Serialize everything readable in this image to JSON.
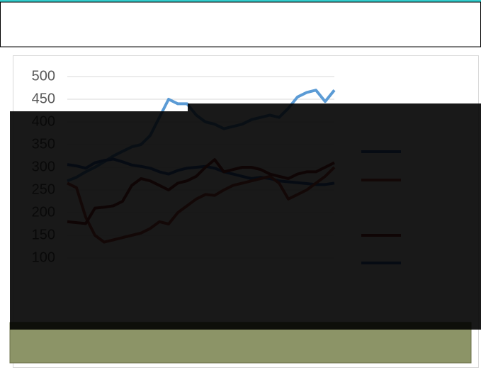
{
  "chart_data": {
    "type": "line",
    "categories": [
      null,
      null,
      null,
      null,
      null,
      null,
      null,
      null,
      null,
      null,
      null,
      null,
      null,
      null,
      null,
      null,
      null,
      null,
      null,
      null,
      null,
      null,
      null,
      null,
      null,
      null,
      null,
      null,
      null,
      null
    ],
    "ylim": [
      100,
      500
    ],
    "yticks": [
      100,
      150,
      200,
      250,
      300,
      350,
      400,
      450,
      500
    ],
    "grid": true,
    "series": [
      {
        "color": "#5b9bd5",
        "values": [
          270,
          278,
          290,
          300,
          312,
          325,
          335,
          345,
          350,
          370,
          410,
          450,
          440,
          440,
          415,
          400,
          395,
          385,
          390,
          395,
          405,
          410,
          415,
          410,
          430,
          455,
          465,
          470,
          445,
          470
        ]
      },
      {
        "color": "#4472c4",
        "values": [
          306,
          303,
          298,
          310,
          315,
          318,
          312,
          305,
          302,
          298,
          290,
          285,
          293,
          298,
          300,
          302,
          298,
          290,
          285,
          280,
          275,
          278,
          275,
          270,
          268,
          266,
          264,
          262,
          262,
          265
        ]
      },
      {
        "color": "#c0504d",
        "values": [
          265,
          255,
          190,
          150,
          135,
          140,
          145,
          150,
          155,
          165,
          180,
          175,
          200,
          215,
          230,
          240,
          238,
          250,
          260,
          265,
          270,
          275,
          280,
          265,
          230,
          240,
          250,
          265,
          280,
          300
        ]
      },
      {
        "color": "#953735",
        "values": [
          180,
          178,
          176,
          210,
          212,
          215,
          225,
          260,
          275,
          270,
          260,
          250,
          265,
          270,
          280,
          300,
          317,
          290,
          295,
          300,
          300,
          295,
          285,
          280,
          275,
          285,
          290,
          290,
          300,
          310
        ]
      }
    ]
  }
}
